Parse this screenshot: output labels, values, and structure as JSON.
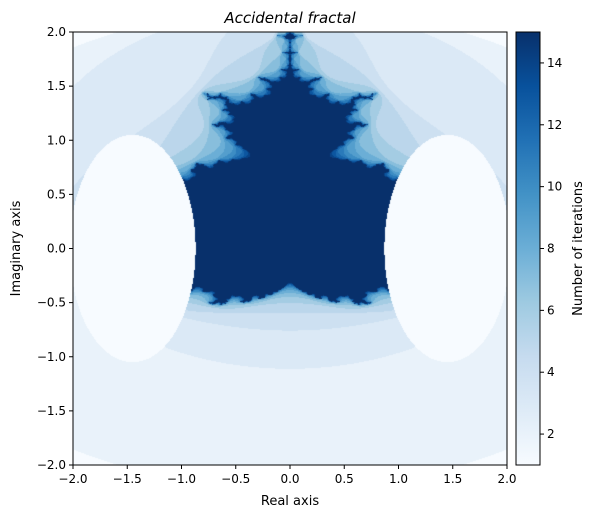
{
  "chart_data": {
    "type": "heatmap",
    "title": "Accidental fractal",
    "xlabel": "Real axis",
    "ylabel": "Imaginary axis",
    "colorbar_label": "Number of iterations",
    "colormap": "Blues",
    "xlim": [
      -2.0,
      2.0
    ],
    "ylim": [
      -2.0,
      2.0
    ],
    "x_ticks": [
      -2.0,
      -1.5,
      -1.0,
      -0.5,
      0.0,
      0.5,
      1.0,
      1.5,
      2.0
    ],
    "x_tick_labels": [
      "−2.0",
      "−1.5",
      "−1.0",
      "−0.5",
      "0.0",
      "0.5",
      "1.0",
      "1.5",
      "2.0"
    ],
    "y_ticks": [
      -2.0,
      -1.5,
      -1.0,
      -0.5,
      0.0,
      0.5,
      1.0,
      1.5,
      2.0
    ],
    "y_tick_labels": [
      "−2.0",
      "−1.5",
      "−1.0",
      "−0.5",
      "0.0",
      "0.5",
      "1.0",
      "1.5",
      "2.0"
    ],
    "colorbar_range": [
      1,
      15
    ],
    "colorbar_ticks": [
      2,
      4,
      6,
      8,
      10,
      12,
      14
    ],
    "colorbar_tick_labels": [
      "2",
      "4",
      "6",
      "8",
      "10",
      "12",
      "14"
    ],
    "grid": false
  }
}
